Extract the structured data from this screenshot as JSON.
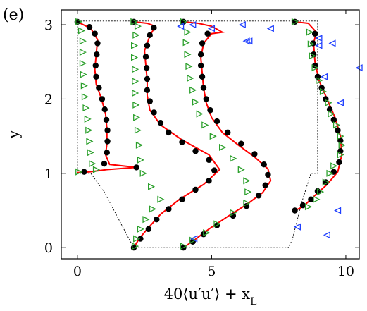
{
  "chart_data": {
    "type": "scatter",
    "panel_label": "(e)",
    "xlabel": "40⟨u′u′⟩ + x_L",
    "ylabel": "y",
    "xlim": [
      -0.6,
      10.5
    ],
    "ylim": [
      -0.15,
      3.2
    ],
    "xticks": [
      "0",
      "5",
      "10"
    ],
    "yticks": [
      "0",
      "1",
      "2",
      "3"
    ],
    "xtick_values": [
      0,
      5,
      10
    ],
    "ytick_values": [
      0,
      1,
      2,
      3
    ],
    "grid": false,
    "colors": {
      "line": "#ff0000",
      "dots": "#000000",
      "green_triangles": "#2ca02c",
      "blue_triangles": "#1f3fff",
      "boundary": "#000000"
    },
    "domain_outline": [
      [
        0,
        3.05
      ],
      [
        8.95,
        3.05
      ],
      [
        8.95,
        1.0
      ],
      [
        8.7,
        1.0
      ],
      [
        8.35,
        0.6
      ],
      [
        8.0,
        0.1
      ],
      [
        7.85,
        0.0
      ],
      [
        2.1,
        0.0
      ],
      [
        1.95,
        0.1
      ],
      [
        1.0,
        0.75
      ],
      [
        0.5,
        1.0
      ],
      [
        0,
        1.0
      ],
      [
        0,
        3.05
      ]
    ],
    "series": [
      {
        "marker": "line",
        "stations": [
          [
            [
              0.0,
              3.04
            ],
            [
              0.5,
              2.95
            ],
            [
              0.75,
              2.8
            ],
            [
              0.7,
              2.6
            ],
            [
              0.65,
              2.4
            ],
            [
              0.7,
              2.2
            ],
            [
              0.9,
              2.0
            ],
            [
              1.05,
              1.8
            ],
            [
              1.1,
              1.6
            ],
            [
              1.1,
              1.4
            ],
            [
              1.05,
              1.25
            ],
            [
              1.2,
              1.12
            ],
            [
              2.2,
              1.08
            ],
            [
              1.1,
              1.05
            ],
            [
              0.45,
              1.02
            ],
            [
              0.0,
              1.01
            ]
          ],
          [
            [
              2.1,
              0.0
            ],
            [
              2.3,
              0.12
            ],
            [
              2.6,
              0.25
            ],
            [
              3.1,
              0.45
            ],
            [
              3.8,
              0.65
            ],
            [
              4.7,
              0.85
            ],
            [
              5.3,
              1.05
            ],
            [
              4.9,
              1.25
            ],
            [
              3.9,
              1.45
            ],
            [
              3.1,
              1.65
            ],
            [
              2.7,
              1.85
            ],
            [
              2.6,
              2.05
            ],
            [
              2.6,
              2.25
            ],
            [
              2.55,
              2.45
            ],
            [
              2.5,
              2.65
            ],
            [
              2.7,
              2.85
            ],
            [
              2.9,
              2.98
            ],
            [
              2.6,
              3.02
            ],
            [
              2.1,
              3.04
            ]
          ],
          [
            [
              3.95,
              0.0
            ],
            [
              4.35,
              0.1
            ],
            [
              4.9,
              0.25
            ],
            [
              5.6,
              0.42
            ],
            [
              6.3,
              0.58
            ],
            [
              6.9,
              0.74
            ],
            [
              7.2,
              0.9
            ],
            [
              7.1,
              1.06
            ],
            [
              6.6,
              1.22
            ],
            [
              6.0,
              1.38
            ],
            [
              5.4,
              1.55
            ],
            [
              5.0,
              1.75
            ],
            [
              4.8,
              1.95
            ],
            [
              4.7,
              2.15
            ],
            [
              4.65,
              2.35
            ],
            [
              4.6,
              2.55
            ],
            [
              4.7,
              2.75
            ],
            [
              5.0,
              2.88
            ],
            [
              5.4,
              2.9
            ],
            [
              5.0,
              2.98
            ],
            [
              4.5,
              3.02
            ],
            [
              3.95,
              3.04
            ]
          ],
          [
            [
              8.1,
              0.5
            ],
            [
              8.4,
              0.55
            ],
            [
              8.9,
              0.72
            ],
            [
              9.3,
              0.85
            ],
            [
              9.7,
              1.02
            ],
            [
              9.85,
              1.25
            ],
            [
              9.8,
              1.5
            ],
            [
              9.6,
              1.75
            ],
            [
              9.3,
              2.0
            ],
            [
              9.0,
              2.25
            ],
            [
              8.85,
              2.5
            ],
            [
              8.8,
              2.75
            ],
            [
              8.9,
              2.9
            ],
            [
              8.6,
              3.02
            ],
            [
              8.1,
              3.04
            ]
          ]
        ]
      },
      {
        "marker": "circle",
        "points": [
          [
            0.0,
            3.04
          ],
          [
            0.45,
            2.97
          ],
          [
            0.65,
            2.88
          ],
          [
            0.75,
            2.75
          ],
          [
            0.72,
            2.6
          ],
          [
            0.68,
            2.45
          ],
          [
            0.7,
            2.3
          ],
          [
            0.8,
            2.15
          ],
          [
            0.92,
            2.0
          ],
          [
            1.02,
            1.86
          ],
          [
            1.08,
            1.72
          ],
          [
            1.12,
            1.58
          ],
          [
            1.12,
            1.43
          ],
          [
            1.1,
            1.28
          ],
          [
            1.0,
            1.13
          ],
          [
            2.2,
            1.08
          ],
          [
            0.25,
            1.02
          ],
          [
            2.1,
            0.0
          ],
          [
            2.35,
            0.12
          ],
          [
            2.65,
            0.25
          ],
          [
            2.95,
            0.38
          ],
          [
            3.4,
            0.52
          ],
          [
            3.9,
            0.65
          ],
          [
            4.4,
            0.78
          ],
          [
            4.9,
            0.9
          ],
          [
            5.1,
            1.04
          ],
          [
            4.9,
            1.18
          ],
          [
            4.4,
            1.3
          ],
          [
            3.9,
            1.42
          ],
          [
            3.4,
            1.55
          ],
          [
            3.1,
            1.68
          ],
          [
            2.85,
            1.82
          ],
          [
            2.7,
            1.97
          ],
          [
            2.6,
            2.12
          ],
          [
            2.6,
            2.27
          ],
          [
            2.58,
            2.42
          ],
          [
            2.55,
            2.57
          ],
          [
            2.6,
            2.72
          ],
          [
            2.7,
            2.86
          ],
          [
            2.85,
            2.96
          ],
          [
            2.1,
            3.04
          ],
          [
            3.95,
            0.0
          ],
          [
            4.3,
            0.08
          ],
          [
            4.7,
            0.18
          ],
          [
            5.2,
            0.3
          ],
          [
            5.8,
            0.43
          ],
          [
            6.3,
            0.56
          ],
          [
            6.75,
            0.7
          ],
          [
            7.0,
            0.84
          ],
          [
            7.1,
            0.98
          ],
          [
            6.95,
            1.12
          ],
          [
            6.6,
            1.26
          ],
          [
            6.1,
            1.4
          ],
          [
            5.6,
            1.55
          ],
          [
            5.2,
            1.7
          ],
          [
            4.95,
            1.85
          ],
          [
            4.8,
            2.0
          ],
          [
            4.7,
            2.15
          ],
          [
            4.65,
            2.3
          ],
          [
            4.6,
            2.45
          ],
          [
            4.6,
            2.6
          ],
          [
            4.65,
            2.75
          ],
          [
            4.85,
            2.88
          ],
          [
            3.95,
            3.04
          ],
          [
            8.1,
            0.5
          ],
          [
            8.4,
            0.57
          ],
          [
            8.7,
            0.65
          ],
          [
            8.95,
            0.76
          ],
          [
            9.25,
            0.88
          ],
          [
            9.55,
            1.02
          ],
          [
            9.75,
            1.15
          ],
          [
            9.8,
            1.3
          ],
          [
            9.8,
            1.44
          ],
          [
            9.7,
            1.58
          ],
          [
            9.55,
            1.72
          ],
          [
            9.4,
            1.86
          ],
          [
            9.25,
            2.0
          ],
          [
            9.1,
            2.15
          ],
          [
            8.95,
            2.3
          ],
          [
            8.85,
            2.45
          ],
          [
            8.8,
            2.6
          ],
          [
            8.78,
            2.75
          ],
          [
            8.85,
            2.88
          ],
          [
            8.1,
            3.04
          ]
        ]
      },
      {
        "marker": "triangle-right",
        "color": "green",
        "points": [
          [
            0.05,
            3.04
          ],
          [
            0.15,
            2.92
          ],
          [
            0.2,
            2.78
          ],
          [
            0.2,
            2.63
          ],
          [
            0.2,
            2.48
          ],
          [
            0.22,
            2.33
          ],
          [
            0.25,
            2.18
          ],
          [
            0.28,
            2.03
          ],
          [
            0.32,
            1.88
          ],
          [
            0.38,
            1.73
          ],
          [
            0.42,
            1.58
          ],
          [
            0.45,
            1.43
          ],
          [
            0.48,
            1.28
          ],
          [
            0.55,
            1.13
          ],
          [
            0.7,
            1.05
          ],
          [
            0.05,
            1.02
          ],
          [
            2.15,
            0.02
          ],
          [
            2.2,
            0.12
          ],
          [
            2.35,
            0.25
          ],
          [
            2.55,
            0.38
          ],
          [
            2.8,
            0.52
          ],
          [
            3.1,
            0.65
          ],
          [
            2.75,
            0.82
          ],
          [
            2.45,
            1.0
          ],
          [
            2.35,
            1.18
          ],
          [
            2.3,
            1.38
          ],
          [
            2.25,
            1.58
          ],
          [
            2.2,
            1.75
          ],
          [
            2.18,
            1.92
          ],
          [
            2.15,
            2.08
          ],
          [
            2.15,
            2.24
          ],
          [
            2.15,
            2.4
          ],
          [
            2.12,
            2.56
          ],
          [
            2.12,
            2.72
          ],
          [
            2.18,
            2.86
          ],
          [
            2.25,
            2.98
          ],
          [
            2.1,
            3.04
          ],
          [
            3.95,
            0.02
          ],
          [
            4.3,
            0.1
          ],
          [
            4.8,
            0.2
          ],
          [
            5.2,
            0.32
          ],
          [
            5.8,
            0.47
          ],
          [
            6.3,
            0.6
          ],
          [
            6.35,
            0.75
          ],
          [
            6.3,
            0.9
          ],
          [
            6.1,
            1.05
          ],
          [
            5.8,
            1.2
          ],
          [
            5.4,
            1.35
          ],
          [
            5.05,
            1.5
          ],
          [
            4.75,
            1.65
          ],
          [
            4.55,
            1.8
          ],
          [
            4.4,
            1.96
          ],
          [
            4.3,
            2.12
          ],
          [
            4.2,
            2.28
          ],
          [
            4.15,
            2.44
          ],
          [
            4.1,
            2.6
          ],
          [
            4.05,
            2.76
          ],
          [
            4.1,
            2.9
          ],
          [
            3.95,
            3.04
          ],
          [
            8.6,
            0.55
          ],
          [
            8.9,
            0.65
          ],
          [
            9.05,
            0.75
          ],
          [
            9.25,
            0.88
          ],
          [
            9.4,
            1.0
          ],
          [
            9.55,
            1.1
          ],
          [
            9.8,
            1.25
          ],
          [
            9.85,
            1.38
          ],
          [
            9.8,
            1.5
          ],
          [
            9.65,
            1.65
          ],
          [
            9.45,
            1.8
          ],
          [
            9.35,
            1.95
          ],
          [
            9.15,
            2.1
          ],
          [
            9.0,
            2.25
          ],
          [
            8.85,
            2.42
          ],
          [
            8.75,
            2.58
          ],
          [
            8.7,
            2.74
          ],
          [
            8.65,
            2.9
          ],
          [
            8.1,
            3.04
          ]
        ]
      },
      {
        "marker": "triangle-left",
        "color": "blue",
        "points": [
          [
            3.85,
            2.98
          ],
          [
            4.3,
            3.0
          ],
          [
            5.0,
            2.95
          ],
          [
            6.3,
            2.78
          ],
          [
            6.4,
            2.78
          ],
          [
            6.15,
            3.0
          ],
          [
            7.2,
            2.95
          ],
          [
            9.0,
            2.82
          ],
          [
            9.0,
            2.72
          ],
          [
            9.5,
            2.75
          ],
          [
            9.2,
            2.3
          ],
          [
            9.8,
            1.95
          ],
          [
            10.5,
            2.42
          ],
          [
            4.35,
            0.12
          ],
          [
            9.7,
            0.5
          ],
          [
            8.2,
            0.28
          ],
          [
            9.3,
            0.17
          ]
        ]
      }
    ]
  }
}
